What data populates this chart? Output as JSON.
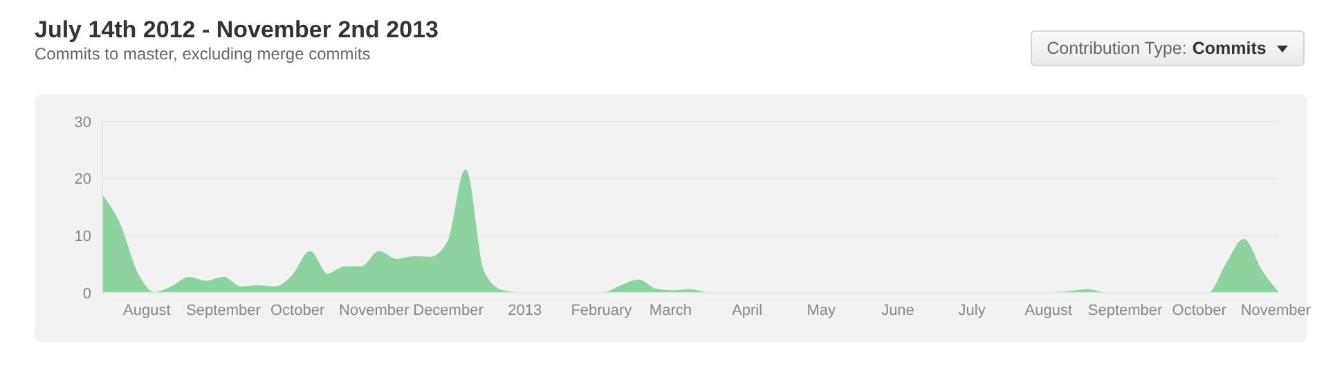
{
  "chart_data": {
    "type": "area",
    "title": "July 14th 2012 - November 2nd 2013",
    "subtitle": "Commits to master, excluding merge commits",
    "annotations": [
      "Contribution Type:",
      "Commits"
    ],
    "x": [
      "2012-07-14",
      "2012-07-21",
      "2012-07-28",
      "2012-08-04",
      "2012-08-11",
      "2012-08-18",
      "2012-08-25",
      "2012-09-01",
      "2012-09-08",
      "2012-09-15",
      "2012-09-22",
      "2012-09-29",
      "2012-10-06",
      "2012-10-13",
      "2012-10-20",
      "2012-10-27",
      "2012-11-03",
      "2012-11-10",
      "2012-11-17",
      "2012-11-24",
      "2012-12-01",
      "2012-12-08",
      "2012-12-15",
      "2012-12-22",
      "2012-12-29",
      "2013-01-05",
      "2013-01-12",
      "2013-01-19",
      "2013-01-26",
      "2013-02-02",
      "2013-02-09",
      "2013-02-16",
      "2013-02-23",
      "2013-03-02",
      "2013-03-09",
      "2013-03-16",
      "2013-03-23",
      "2013-03-30",
      "2013-04-06",
      "2013-04-13",
      "2013-04-20",
      "2013-04-27",
      "2013-05-04",
      "2013-05-11",
      "2013-05-18",
      "2013-05-25",
      "2013-06-01",
      "2013-06-08",
      "2013-06-15",
      "2013-06-22",
      "2013-06-29",
      "2013-07-06",
      "2013-07-13",
      "2013-07-20",
      "2013-07-27",
      "2013-08-03",
      "2013-08-10",
      "2013-08-17",
      "2013-08-24",
      "2013-08-31",
      "2013-09-07",
      "2013-09-14",
      "2013-09-21",
      "2013-09-28",
      "2013-10-05",
      "2013-10-12",
      "2013-10-19",
      "2013-10-26",
      "2013-11-02"
    ],
    "series": [
      {
        "color": "#8cd3a0",
        "values": [
          17,
          12,
          3.5,
          0,
          1,
          2.7,
          2,
          2.7,
          1,
          1.2,
          1,
          3,
          7.2,
          3.2,
          4.5,
          4.5,
          7.2,
          5.8,
          6.3,
          6.2,
          9,
          21.5,
          4,
          0.5,
          0,
          0,
          0,
          0,
          0,
          0,
          1.2,
          2.2,
          0.6,
          0.3,
          0.5,
          0,
          0,
          0,
          0,
          0,
          0,
          0,
          0,
          0,
          0,
          0,
          0,
          0,
          0,
          0,
          0,
          0,
          0,
          0,
          0,
          0,
          0.2,
          0.5,
          0,
          0,
          0,
          0,
          0,
          0,
          0,
          5,
          9.3,
          4,
          0
        ]
      }
    ],
    "xlim": [
      "2012-07-14",
      "2013-11-02"
    ],
    "xticks": [
      {
        "value": "2012-08-01",
        "label": "August"
      },
      {
        "value": "2012-09-01",
        "label": "September"
      },
      {
        "value": "2012-10-01",
        "label": "October"
      },
      {
        "value": "2012-11-01",
        "label": "November"
      },
      {
        "value": "2012-12-01",
        "label": "December"
      },
      {
        "value": "2013-01-01",
        "label": "2013"
      },
      {
        "value": "2013-02-01",
        "label": "February"
      },
      {
        "value": "2013-03-01",
        "label": "March"
      },
      {
        "value": "2013-04-01",
        "label": "April"
      },
      {
        "value": "2013-05-01",
        "label": "May"
      },
      {
        "value": "2013-06-01",
        "label": "June"
      },
      {
        "value": "2013-07-01",
        "label": "July"
      },
      {
        "value": "2013-08-01",
        "label": "August"
      },
      {
        "value": "2013-09-01",
        "label": "September"
      },
      {
        "value": "2013-10-01",
        "label": "October"
      },
      {
        "value": "2013-11-01",
        "label": "November"
      }
    ],
    "ylim": [
      0,
      30
    ],
    "yticks": [
      0,
      10,
      20,
      30
    ],
    "grid": "y"
  }
}
